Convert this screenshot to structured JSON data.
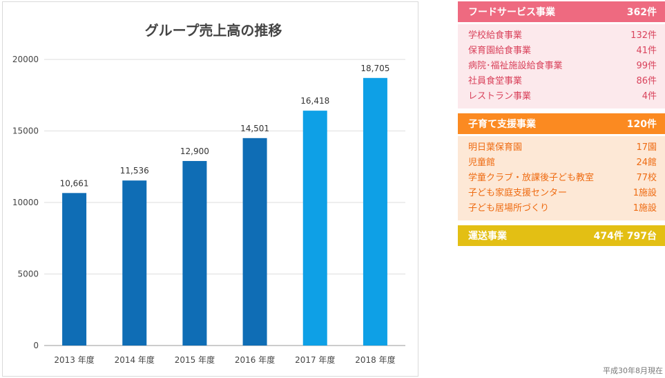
{
  "chart_data": {
    "type": "bar",
    "title": "グループ売上高の推移",
    "categories": [
      "2013 年度",
      "2014 年度",
      "2015 年度",
      "2016 年度",
      "2017 年度",
      "2018 年度"
    ],
    "values": [
      10661,
      11536,
      12900,
      14501,
      16418,
      18705
    ],
    "value_labels": [
      "10,661",
      "11,536",
      "12,900",
      "14,501",
      "16,418",
      "18,705"
    ],
    "y_ticks": [
      0,
      5000,
      10000,
      15000,
      20000
    ],
    "ylim": [
      0,
      20000
    ],
    "xlabel": "",
    "ylabel": "",
    "grid": true,
    "colors": {
      "bar_dark": "#0f6db5",
      "bar_light": "#0ea0e6",
      "highlight_label": "#c0102e",
      "normal_label": "#333333",
      "grid": "#dedede",
      "axis": "#9a9a9a"
    },
    "highlight_from_index": 4
  },
  "panels": {
    "food": {
      "title": "フードサービス事業",
      "total": "362件",
      "header_color": "#ee6a80",
      "body_color": "#fce9ec",
      "text_color": "#d9435c",
      "items": [
        {
          "label": "学校給食事業",
          "value": "132件"
        },
        {
          "label": "保育園給食事業",
          "value": "41件"
        },
        {
          "label": "病院･福祉施設給食事業",
          "value": "99件"
        },
        {
          "label": "社員食堂事業",
          "value": "86件"
        },
        {
          "label": "レストラン事業",
          "value": "4件"
        }
      ]
    },
    "childcare": {
      "title": "子育て支援事業",
      "total": "120件",
      "header_color": "#fb8a21",
      "body_color": "#fde8d6",
      "text_color": "#ee6b12",
      "items": [
        {
          "label": "明日葉保育園",
          "value": "17園"
        },
        {
          "label": "児童館",
          "value": "24館"
        },
        {
          "label": "学童クラブ・放課後子ども教室",
          "value": "77校"
        },
        {
          "label": "子ども家庭支援センター",
          "value": "1施設"
        },
        {
          "label": "子ども居場所づくり",
          "value": "1施設"
        }
      ]
    },
    "transport": {
      "title": "運送事業",
      "total": "474件 797台",
      "header_color": "#e3bf14"
    }
  },
  "footnote": "平成30年8月現在"
}
